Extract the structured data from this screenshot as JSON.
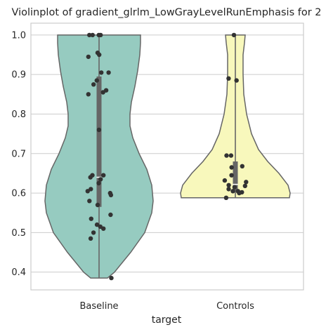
{
  "chart_data": {
    "type": "violin",
    "title": "Violinplot of gradient_glrlm_LowGrayLevelRunEmphasis for 2",
    "xlabel": "target",
    "ylabel": "",
    "categories": [
      "Baseline",
      "Controls"
    ],
    "ylim": [
      0.355,
      1.03
    ],
    "yticks": [
      "0.4",
      "0.5",
      "0.6",
      "0.7",
      "0.8",
      "0.9",
      "1.0"
    ],
    "grid": true,
    "colors": {
      "Baseline": "#96cbc0",
      "Controls": "#f8f8bc"
    },
    "series": [
      {
        "category": "Baseline",
        "range": [
          0.385,
          1.0
        ],
        "q1": 0.565,
        "median": 0.64,
        "q3": 0.895,
        "points": [
          1.0,
          1.0,
          1.0,
          1.0,
          0.955,
          0.95,
          0.945,
          0.905,
          0.905,
          0.885,
          0.875,
          0.86,
          0.855,
          0.85,
          0.76,
          0.645,
          0.645,
          0.64,
          0.635,
          0.625,
          0.61,
          0.605,
          0.6,
          0.595,
          0.58,
          0.57,
          0.545,
          0.535,
          0.52,
          0.515,
          0.51,
          0.5,
          0.485,
          0.385
        ]
      },
      {
        "category": "Controls",
        "range": [
          0.588,
          1.0
        ],
        "q1": 0.605,
        "median": 0.622,
        "q3": 0.68,
        "points": [
          1.0,
          0.89,
          0.885,
          0.695,
          0.695,
          0.668,
          0.665,
          0.645,
          0.632,
          0.628,
          0.62,
          0.618,
          0.615,
          0.61,
          0.605,
          0.605,
          0.602,
          0.6,
          0.588
        ]
      }
    ]
  }
}
